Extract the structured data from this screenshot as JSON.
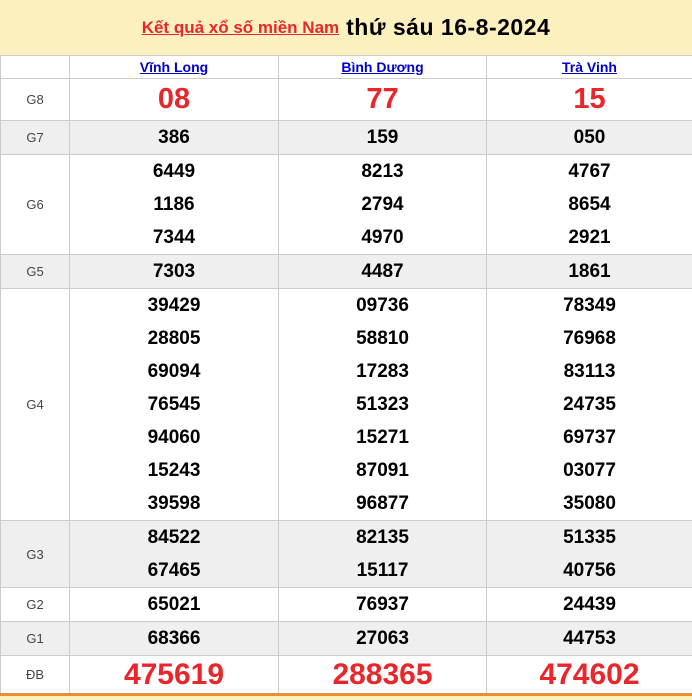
{
  "page": {
    "title_link": "Kết quả xổ số miền Nam",
    "title_date": "thứ sáu 16-8-2024"
  },
  "colors": {
    "page_bg": "#FCF1BE",
    "red": "#E8262B",
    "blue": "#0000CC",
    "stripe": "#EFEFEF",
    "border": "#CCCCCC",
    "orange": "#E78F2C",
    "label": "#444444"
  },
  "table": {
    "columns": [
      "Vĩnh Long",
      "Bình Dương",
      "Trà Vinh"
    ],
    "rows": [
      {
        "label": "G8",
        "style": "red-lg",
        "values": [
          [
            "08"
          ],
          [
            "77"
          ],
          [
            "15"
          ]
        ]
      },
      {
        "label": "G7",
        "style": "",
        "values": [
          [
            "386"
          ],
          [
            "159"
          ],
          [
            "050"
          ]
        ]
      },
      {
        "label": "G6",
        "style": "",
        "values": [
          [
            "6449",
            "1186",
            "7344"
          ],
          [
            "8213",
            "2794",
            "4970"
          ],
          [
            "4767",
            "8654",
            "2921"
          ]
        ]
      },
      {
        "label": "G5",
        "style": "",
        "values": [
          [
            "7303"
          ],
          [
            "4487"
          ],
          [
            "1861"
          ]
        ]
      },
      {
        "label": "G4",
        "style": "",
        "values": [
          [
            "39429",
            "28805",
            "69094",
            "76545",
            "94060",
            "15243",
            "39598"
          ],
          [
            "09736",
            "58810",
            "17283",
            "51323",
            "15271",
            "87091",
            "96877"
          ],
          [
            "78349",
            "76968",
            "83113",
            "24735",
            "69737",
            "03077",
            "35080"
          ]
        ]
      },
      {
        "label": "G3",
        "style": "",
        "values": [
          [
            "84522",
            "67465"
          ],
          [
            "82135",
            "15117"
          ],
          [
            "51335",
            "40756"
          ]
        ]
      },
      {
        "label": "G2",
        "style": "",
        "values": [
          [
            "65021"
          ],
          [
            "76937"
          ],
          [
            "24439"
          ]
        ]
      },
      {
        "label": "G1",
        "style": "",
        "values": [
          [
            "68366"
          ],
          [
            "27063"
          ],
          [
            "44753"
          ]
        ]
      },
      {
        "label": "ĐB",
        "style": "red-xl",
        "values": [
          [
            "475619"
          ],
          [
            "288365"
          ],
          [
            "474602"
          ]
        ]
      }
    ]
  }
}
